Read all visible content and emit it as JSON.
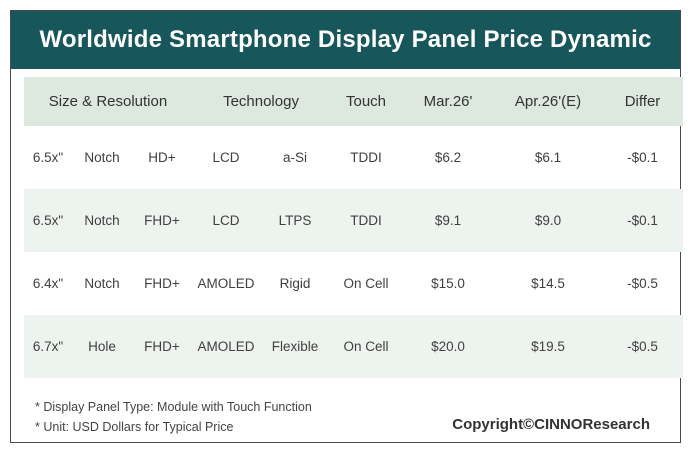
{
  "title": "Worldwide Smartphone Display Panel Price Dynamic",
  "table": {
    "headers": {
      "size_resolution": "Size & Resolution",
      "technology": "Technology",
      "touch": "Touch",
      "mar": "Mar.26'",
      "apr": "Apr.26'(E)",
      "differ": "Differ"
    },
    "rows": [
      {
        "size": "6.5x\"",
        "form": "Notch",
        "res": "HD+",
        "tech": "LCD",
        "sub": "a-Si",
        "touch": "TDDI",
        "mar": "$6.2",
        "apr": "$6.1",
        "differ": "-$0.1"
      },
      {
        "size": "6.5x\"",
        "form": "Notch",
        "res": "FHD+",
        "tech": "LCD",
        "sub": "LTPS",
        "touch": "TDDI",
        "mar": "$9.1",
        "apr": "$9.0",
        "differ": "-$0.1"
      },
      {
        "size": "6.4x\"",
        "form": "Notch",
        "res": "FHD+",
        "tech": "AMOLED",
        "sub": "Rigid",
        "touch": "On Cell",
        "mar": "$15.0",
        "apr": "$14.5",
        "differ": "-$0.5"
      },
      {
        "size": "6.7x\"",
        "form": "Hole",
        "res": "FHD+",
        "tech": "AMOLED",
        "sub": "Flexible",
        "touch": "On Cell",
        "mar": "$20.0",
        "apr": "$19.5",
        "differ": "-$0.5"
      }
    ]
  },
  "notes": {
    "note1": "* Display Panel Type:  Module with Touch Function",
    "note2": "* Unit:  USD Dollars for Typical Price"
  },
  "copyright": "Copyright©CINNOResearch",
  "colors": {
    "banner": "#17565a",
    "header_row": "#dde8de",
    "shaded_row": "#edf3ee"
  }
}
